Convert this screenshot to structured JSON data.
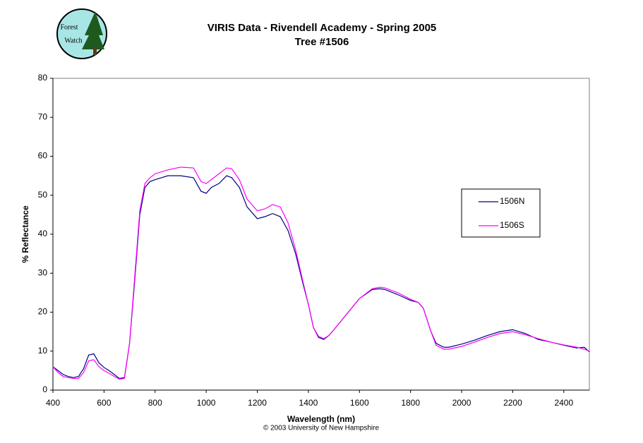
{
  "logo": [
    "Forest",
    "Watch"
  ],
  "footer": "© 2003 University of New Hampshire",
  "chart_data": {
    "type": "line",
    "title": "VIRIS Data - Rivendell Academy - Spring 2005",
    "subtitle": "Tree #1506",
    "x_label": "Wavelength (nm)",
    "y_label": "% Reflectance",
    "x": [
      400,
      420,
      440,
      460,
      480,
      500,
      520,
      540,
      560,
      580,
      600,
      620,
      640,
      660,
      680,
      700,
      720,
      740,
      760,
      780,
      800,
      850,
      900,
      950,
      980,
      1000,
      1020,
      1050,
      1080,
      1100,
      1130,
      1160,
      1200,
      1230,
      1260,
      1290,
      1320,
      1350,
      1380,
      1400,
      1420,
      1440,
      1460,
      1480,
      1500,
      1550,
      1600,
      1650,
      1680,
      1700,
      1750,
      1800,
      1830,
      1850,
      1880,
      1900,
      1930,
      1950,
      2000,
      2050,
      2100,
      2150,
      2200,
      2250,
      2300,
      2350,
      2400,
      2450,
      2480,
      2500
    ],
    "series": [
      {
        "name": "1506N",
        "color": "#000080",
        "values": [
          6,
          5,
          4,
          3.5,
          3.2,
          3.5,
          5.5,
          9,
          9.3,
          7,
          5.8,
          5,
          4,
          3,
          3.2,
          12,
          28,
          45,
          52,
          53.5,
          54,
          55,
          55,
          54.5,
          51,
          50.5,
          52,
          53,
          55,
          54.5,
          52,
          47,
          44,
          44.5,
          45.3,
          44.5,
          41,
          35,
          27,
          22,
          16,
          13.5,
          13,
          14,
          15.5,
          19.5,
          23.5,
          25.8,
          26,
          25.8,
          24.5,
          23,
          22.5,
          21,
          15,
          12,
          11,
          11,
          11.8,
          12.8,
          14,
          15,
          15.5,
          14.5,
          13,
          12.3,
          11.5,
          10.8,
          11,
          9.8
        ]
      },
      {
        "name": "1506S",
        "color": "#ff00ff",
        "values": [
          6,
          4.5,
          3.5,
          3.2,
          3,
          3,
          4.5,
          7.5,
          7.8,
          6,
          5,
          4.3,
          3.5,
          2.8,
          3,
          12,
          29,
          46,
          53,
          54.5,
          55.5,
          56.5,
          57.2,
          57,
          53.5,
          53,
          54,
          55.5,
          57,
          56.8,
          54,
          49,
          46,
          46.5,
          47.6,
          47,
          43,
          36,
          27.5,
          22,
          16,
          13.8,
          13.2,
          14,
          15.5,
          19.5,
          23.5,
          26,
          26.4,
          26.2,
          25,
          23.3,
          22.5,
          21,
          15,
          11.5,
          10.5,
          10.5,
          11.2,
          12.3,
          13.5,
          14.5,
          15,
          14.2,
          13.2,
          12.3,
          11.6,
          11,
          10.5,
          10
        ]
      }
    ],
    "xlim": [
      400,
      2500
    ],
    "xticks": [
      400,
      600,
      800,
      1000,
      1200,
      1400,
      1600,
      1800,
      2000,
      2200,
      2400
    ],
    "ylim": [
      0,
      80
    ],
    "yticks": [
      0,
      10,
      20,
      30,
      40,
      50,
      60,
      70,
      80
    ],
    "legend": "right"
  }
}
